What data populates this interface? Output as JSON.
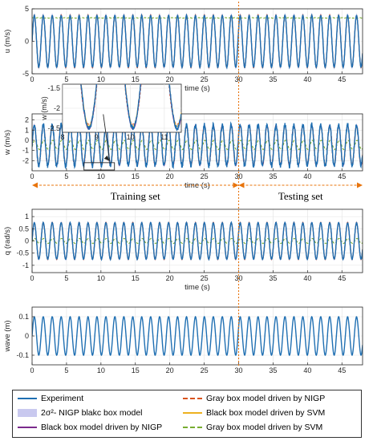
{
  "chart_data": [
    {
      "type": "line",
      "ylabel": "u (m/s)",
      "xlabel": "time (s)",
      "xlim": [
        0,
        48
      ],
      "ylim": [
        -5,
        5
      ],
      "xticks": [
        0,
        5,
        10,
        15,
        20,
        25,
        30,
        35,
        40,
        45
      ],
      "yticks": [
        -5,
        0,
        5
      ],
      "grid": true,
      "signal": {
        "amplitude": 4.0,
        "period": 1.3,
        "offset": 0
      },
      "svm_level": 3.6
    },
    {
      "type": "line",
      "ylabel": "w (m/s)",
      "xlabel": "time (s)",
      "xlim": [
        0,
        48
      ],
      "ylim": [
        -3,
        2.6
      ],
      "xticks": [
        0,
        5,
        10,
        15,
        20,
        25,
        30,
        35,
        40,
        45
      ],
      "yticks": [
        -2,
        -1,
        0,
        1,
        2
      ],
      "grid": true,
      "signal": {
        "amplitude": 2.0,
        "period": 1.3,
        "offset": -0.5
      },
      "inset": {
        "xlim": [
          8,
          11.5
        ],
        "ylim": [
          -2.6,
          -1.4
        ],
        "xticks": [
          8,
          9,
          10,
          11
        ],
        "yticks": [
          -2.5,
          -2,
          -1.5
        ],
        "ylabel": "w (m/s)"
      }
    },
    {
      "type": "line",
      "ylabel": "q (rad/s)",
      "xlabel": "time (s)",
      "xlim": [
        0,
        48
      ],
      "ylim": [
        -1.3,
        1.3
      ],
      "xticks": [
        0,
        5,
        10,
        15,
        20,
        25,
        30,
        35,
        40,
        45
      ],
      "yticks": [
        -1,
        -0.5,
        0,
        0.5,
        1
      ],
      "grid": true,
      "signal": {
        "amplitude": 0.75,
        "period": 1.3,
        "offset": 0
      }
    },
    {
      "type": "line",
      "ylabel": "wave (m)",
      "xlim": [
        0,
        48
      ],
      "ylim": [
        -0.15,
        0.15
      ],
      "xticks": [
        0,
        5,
        10,
        15,
        20,
        25,
        30,
        35,
        40,
        45
      ],
      "yticks": [
        -0.1,
        0,
        0.1
      ],
      "grid": true,
      "signal": {
        "amplitude": 0.1,
        "period": 1.3,
        "offset": 0
      }
    }
  ],
  "annotations": {
    "split_time": 30,
    "training_label": "Training set",
    "testing_label": "Testing set"
  },
  "legend": {
    "experiment": "Experiment",
    "nigp_band": "2σ²- NIGP blakc box model",
    "black_nigp": "Black box model driven by NIGP",
    "gray_nigp": "Gray box model driven by NIGP",
    "black_svm": "Black box model driven by SVM",
    "gray_svm": "Gray box model driven by SVM"
  },
  "colors": {
    "experiment": "#1f6fb2",
    "nigp_band": "#c9c9ef",
    "black_nigp": "#7b2a8c",
    "gray_nigp": "#d9531e",
    "black_svm": "#edb120",
    "gray_svm": "#77ac30",
    "split_line": "#e8740c"
  }
}
